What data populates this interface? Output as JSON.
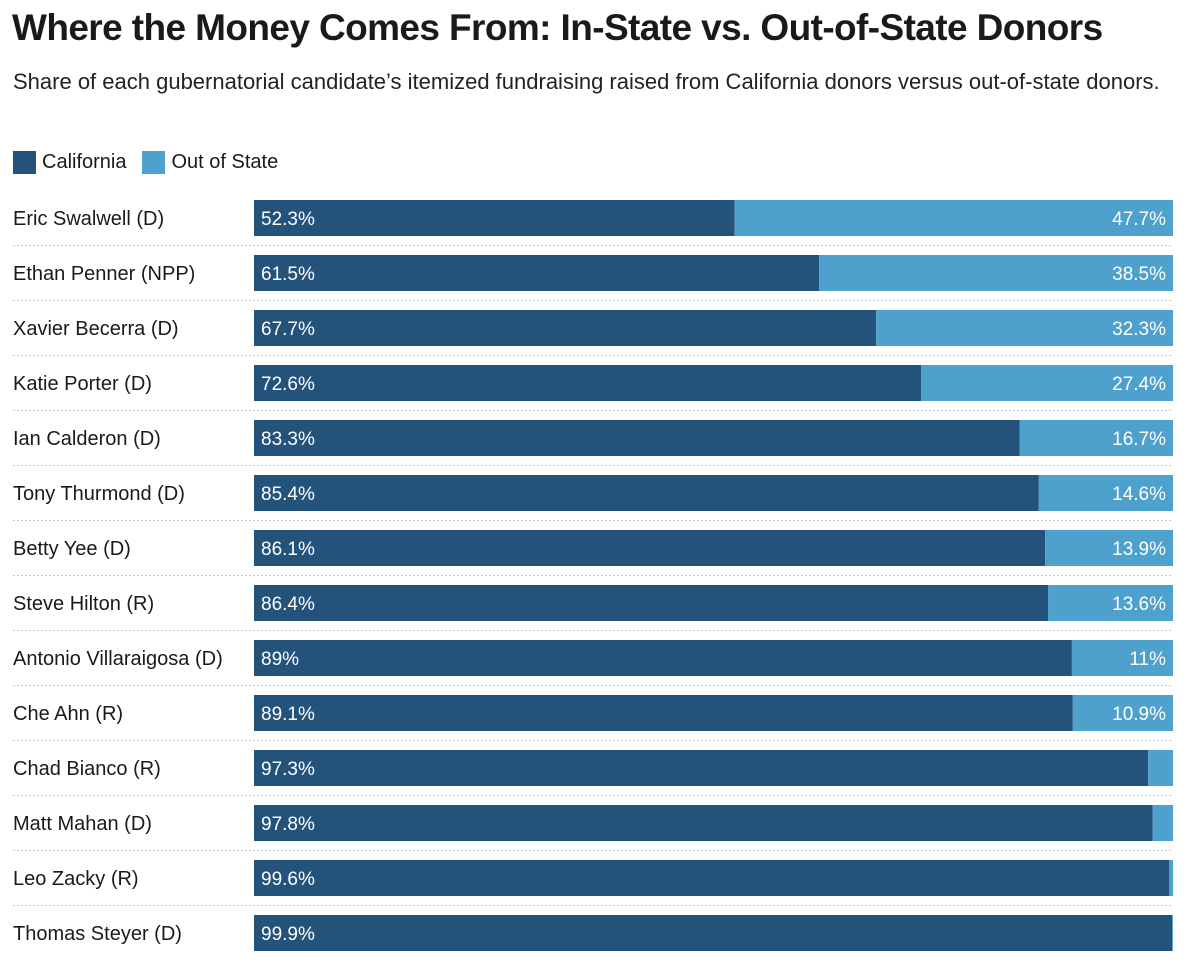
{
  "chart_data": {
    "type": "bar",
    "orientation": "horizontal",
    "stacked": true,
    "title": "Where the Money Comes From: In-State vs. Out-of-State Donors",
    "subtitle": "Share of each gubernatorial candidate’s itemized fundraising raised from California donors versus out-of-state donors.",
    "legend_position": "top-left",
    "xlim": [
      0,
      100
    ],
    "categories": [
      "Eric Swalwell (D)",
      "Ethan Penner (NPP)",
      "Xavier Becerra (D)",
      "Katie Porter (D)",
      "Ian Calderon (D)",
      "Tony Thurmond (D)",
      "Betty Yee (D)",
      "Steve Hilton (R)",
      "Antonio Villaraigosa (D)",
      "Che Ahn (R)",
      "Chad Bianco (R)",
      "Matt Mahan (D)",
      "Leo Zacky (R)",
      "Thomas Steyer (D)"
    ],
    "series": [
      {
        "name": "California",
        "color": "#23527a",
        "values": [
          52.3,
          61.5,
          67.7,
          72.6,
          83.3,
          85.4,
          86.1,
          86.4,
          89,
          89.1,
          97.3,
          97.8,
          99.6,
          99.9
        ],
        "labels": [
          "52.3%",
          "61.5%",
          "67.7%",
          "72.6%",
          "83.3%",
          "85.4%",
          "86.1%",
          "86.4%",
          "89%",
          "89.1%",
          "97.3%",
          "97.8%",
          "99.6%",
          "99.9%"
        ]
      },
      {
        "name": "Out of State",
        "color": "#4ea1cc",
        "values": [
          47.7,
          38.5,
          32.3,
          27.4,
          16.7,
          14.6,
          13.9,
          13.6,
          11,
          10.9,
          2.7,
          2.2,
          0.4,
          0.1
        ],
        "labels": [
          "47.7%",
          "38.5%",
          "32.3%",
          "27.4%",
          "16.7%",
          "14.6%",
          "13.9%",
          "13.6%",
          "11%",
          "10.9%",
          "",
          "",
          "",
          ""
        ]
      }
    ]
  }
}
